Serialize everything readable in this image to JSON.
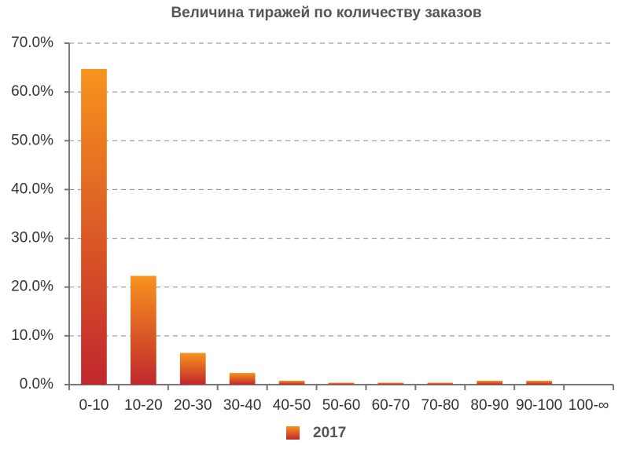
{
  "chart_data": {
    "type": "bar",
    "title": "Величина тиражей по количеству заказов",
    "categories": [
      "0-10",
      "10-20",
      "20-30",
      "30-40",
      "40-50",
      "50-60",
      "60-70",
      "70-80",
      "80-90",
      "90-100",
      "100-∞"
    ],
    "series": [
      {
        "name": "2017",
        "color": [
          "#f7931e",
          "#c1272d"
        ],
        "values": [
          64.7,
          22.3,
          6.5,
          2.4,
          0.8,
          0.4,
          0.4,
          0.4,
          0.8,
          0.8,
          0
        ]
      }
    ],
    "ylim": [
      0,
      70
    ],
    "yticks": [
      {
        "value": 0,
        "label": "0.0%"
      },
      {
        "value": 10,
        "label": "10.0%"
      },
      {
        "value": 20,
        "label": "20.0%"
      },
      {
        "value": 30,
        "label": "30.0%"
      },
      {
        "value": 40,
        "label": "40.0%"
      },
      {
        "value": 50,
        "label": "50.0%"
      },
      {
        "value": 60,
        "label": "60.0%"
      },
      {
        "value": 70,
        "label": "70.0%"
      }
    ],
    "grid": true
  }
}
